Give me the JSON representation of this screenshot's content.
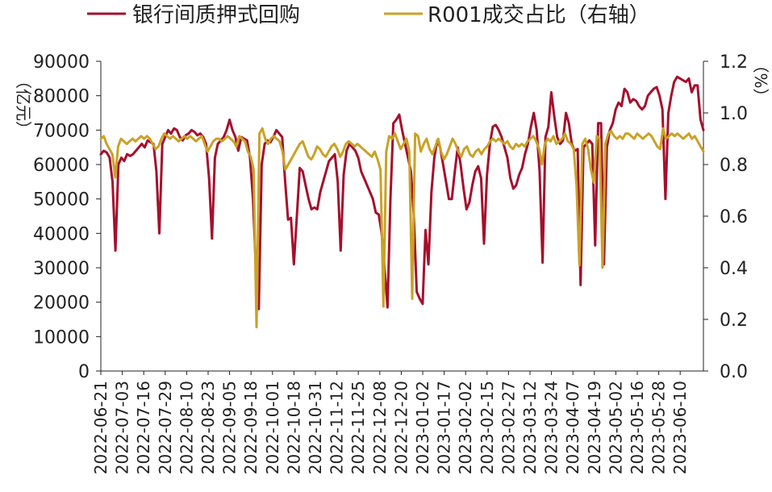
{
  "chart_data": {
    "type": "line",
    "ylabel_left": "（亿元）",
    "ylabel_right": "（%）",
    "legend_position": "top",
    "ylim_left": [
      0,
      90000
    ],
    "ylim_right": [
      0.0,
      1.2
    ],
    "yticks_left": [
      "0",
      "10000",
      "20000",
      "30000",
      "40000",
      "50000",
      "60000",
      "70000",
      "80000",
      "90000"
    ],
    "yticks_right": [
      "0.0",
      "0.2",
      "0.4",
      "0.6",
      "0.8",
      "1.0",
      "1.2"
    ],
    "x_ticks": [
      "2022-06-21",
      "2022-07-03",
      "2022-07-16",
      "2022-07-29",
      "2022-08-10",
      "2022-08-23",
      "2022-09-05",
      "2022-09-18",
      "2022-10-01",
      "2022-10-18",
      "2022-10-31",
      "2022-11-12",
      "2022-11-25",
      "2022-12-08",
      "2022-12-20",
      "2023-01-02",
      "2023-01-17",
      "2023-02-02",
      "2023-02-15",
      "2023-02-27",
      "2023-03-12",
      "2023-03-24",
      "2023-04-07",
      "2023-04-19",
      "2023-05-02",
      "2023-05-16",
      "2023-05-28",
      "2023-06-10"
    ],
    "series": [
      {
        "name": "银行间质押式回购",
        "axis": "left",
        "color": "#A50F2D",
        "values": [
          63000,
          64000,
          63500,
          62000,
          55000,
          35000,
          60000,
          62000,
          61000,
          63000,
          62500,
          63000,
          64000,
          65000,
          66000,
          65000,
          67000,
          66500,
          66000,
          58000,
          40000,
          66000,
          68000,
          70000,
          69000,
          70500,
          70000,
          68000,
          67000,
          68500,
          69000,
          70000,
          69500,
          68500,
          69000,
          68000,
          66000,
          56000,
          38500,
          62000,
          66000,
          67000,
          68000,
          70000,
          73000,
          70000,
          68000,
          64000,
          68000,
          67500,
          67000,
          62000,
          50000,
          30000,
          18000,
          60000,
          66000,
          67000,
          66500,
          68000,
          70000,
          69000,
          68000,
          55000,
          44000,
          44500,
          31000,
          45000,
          59000,
          58000,
          54000,
          50000,
          47000,
          47500,
          47000,
          52000,
          55000,
          58000,
          61000,
          62000,
          63000,
          55000,
          35000,
          57000,
          64000,
          66000,
          65000,
          64000,
          62000,
          58000,
          56000,
          54000,
          52000,
          50000,
          46000,
          45500,
          40000,
          30000,
          18500,
          50000,
          72000,
          73000,
          74500,
          70000,
          66000,
          62000,
          58000,
          45000,
          23000,
          21000,
          19500,
          41000,
          31000,
          52000,
          62000,
          67000,
          65000,
          60000,
          55000,
          50000,
          50000,
          58000,
          65000,
          60000,
          53000,
          47000,
          49000,
          54000,
          58000,
          59500,
          56000,
          37000,
          57000,
          66000,
          71000,
          71500,
          70000,
          68000,
          65000,
          62000,
          56000,
          53000,
          54000,
          57000,
          59000,
          63000,
          66000,
          71000,
          75000,
          70000,
          58000,
          31500,
          68000,
          71000,
          81000,
          74000,
          68000,
          66000,
          67000,
          75000,
          72000,
          66000,
          64000,
          64500,
          25000,
          65000,
          66000,
          67000,
          66000,
          36500,
          72000,
          72000,
          31000,
          65000,
          70000,
          72000,
          76000,
          78000,
          77000,
          82000,
          81000,
          78000,
          79000,
          78500,
          77000,
          76000,
          77000,
          80000,
          81000,
          82000,
          82500,
          80000,
          76000,
          50000,
          75000,
          80000,
          84000,
          85500,
          85000,
          84500,
          84000,
          85000,
          81000,
          83000,
          83000,
          73000,
          70000
        ]
      },
      {
        "name": "R001成交占比（右轴）",
        "axis": "right",
        "color": "#C9A227",
        "values": [
          0.9,
          0.91,
          0.88,
          0.86,
          0.84,
          0.75,
          0.87,
          0.9,
          0.89,
          0.88,
          0.89,
          0.9,
          0.89,
          0.9,
          0.91,
          0.9,
          0.91,
          0.9,
          0.88,
          0.86,
          0.87,
          0.9,
          0.92,
          0.91,
          0.9,
          0.91,
          0.9,
          0.89,
          0.9,
          0.91,
          0.9,
          0.91,
          0.9,
          0.89,
          0.9,
          0.91,
          0.88,
          0.85,
          0.87,
          0.89,
          0.9,
          0.9,
          0.89,
          0.9,
          0.91,
          0.9,
          0.89,
          0.87,
          0.91,
          0.9,
          0.89,
          0.85,
          0.83,
          0.78,
          0.17,
          0.92,
          0.94,
          0.9,
          0.88,
          0.9,
          0.91,
          0.9,
          0.89,
          0.85,
          0.78,
          0.8,
          0.82,
          0.84,
          0.86,
          0.88,
          0.89,
          0.86,
          0.83,
          0.82,
          0.84,
          0.87,
          0.86,
          0.84,
          0.83,
          0.85,
          0.87,
          0.88,
          0.86,
          0.83,
          0.85,
          0.88,
          0.89,
          0.88,
          0.87,
          0.88,
          0.87,
          0.86,
          0.85,
          0.84,
          0.83,
          0.85,
          0.82,
          0.78,
          0.25,
          0.85,
          0.91,
          0.9,
          0.92,
          0.89,
          0.86,
          0.88,
          0.9,
          0.85,
          0.28,
          0.92,
          0.91,
          0.85,
          0.88,
          0.9,
          0.86,
          0.84,
          0.87,
          0.9,
          0.85,
          0.82,
          0.84,
          0.87,
          0.9,
          0.88,
          0.85,
          0.83,
          0.86,
          0.87,
          0.84,
          0.83,
          0.85,
          0.86,
          0.84,
          0.86,
          0.87,
          0.89,
          0.9,
          0.89,
          0.9,
          0.89,
          0.88,
          0.89,
          0.87,
          0.86,
          0.88,
          0.87,
          0.88,
          0.87,
          0.89,
          0.9,
          0.91,
          0.89,
          0.86,
          0.8,
          0.88,
          0.9,
          0.89,
          0.91,
          0.88,
          0.89,
          0.9,
          0.92,
          0.89,
          0.88,
          0.86,
          0.72,
          0.41,
          0.88,
          0.9,
          0.86,
          0.78,
          0.73,
          0.91,
          0.9,
          0.4,
          0.88,
          0.92,
          0.93,
          0.91,
          0.9,
          0.91,
          0.9,
          0.92,
          0.92,
          0.91,
          0.9,
          0.92,
          0.91,
          0.9,
          0.91,
          0.92,
          0.91,
          0.89,
          0.87,
          0.86,
          0.94,
          0.9,
          0.91,
          0.92,
          0.91,
          0.92,
          0.91,
          0.9,
          0.91,
          0.92,
          0.9,
          0.91,
          0.89,
          0.87,
          0.85
        ]
      }
    ]
  }
}
